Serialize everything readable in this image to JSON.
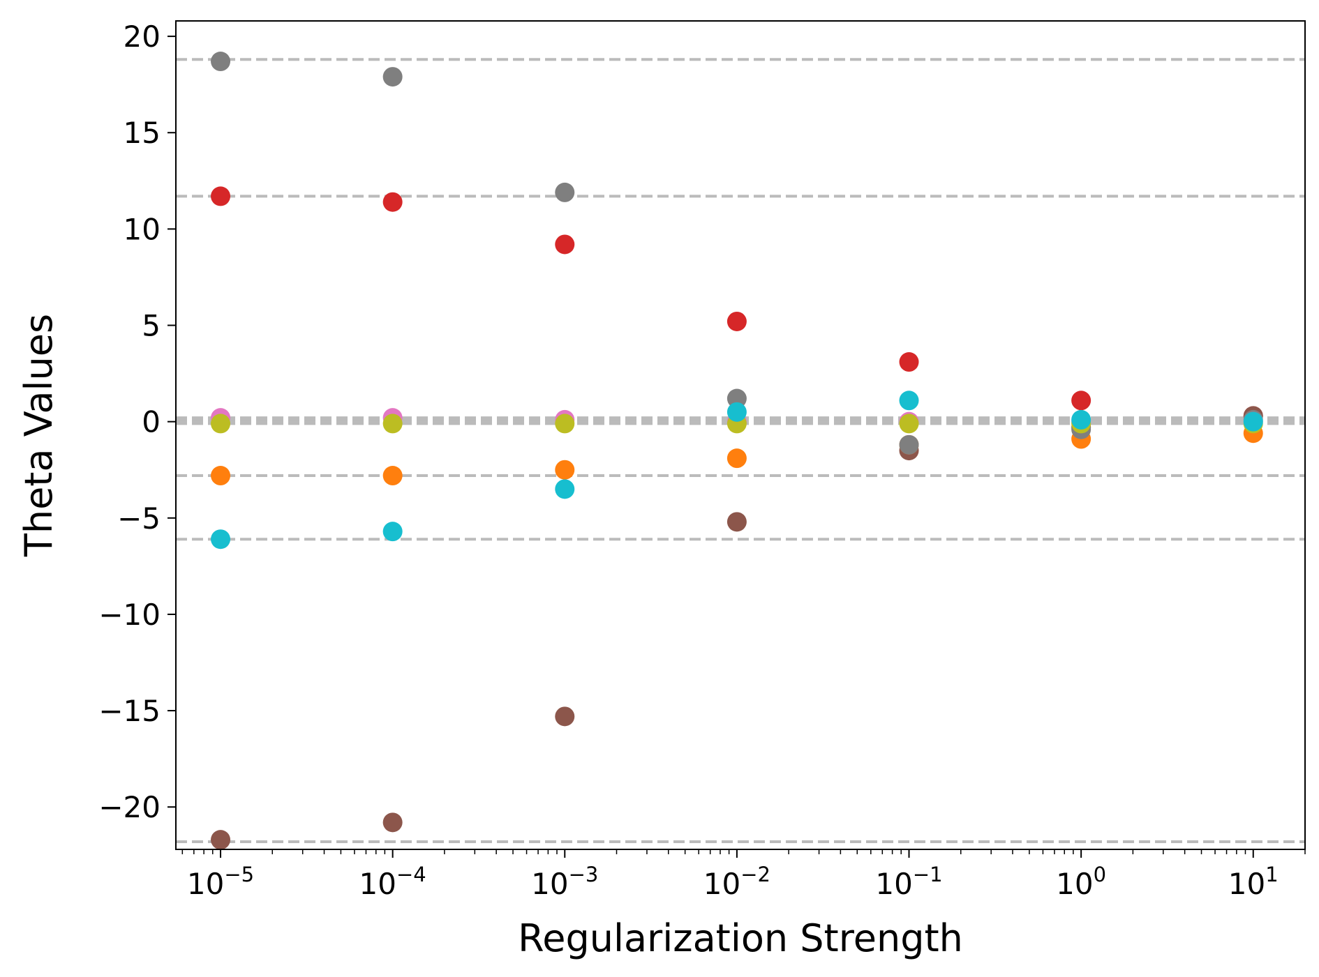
{
  "chart_data": {
    "type": "scatter",
    "title": "",
    "xlabel": "Regularization Strength",
    "ylabel": "Theta Values",
    "x_scale": "log",
    "xlim": [
      5.5e-06,
      20
    ],
    "ylim": [
      -22.2,
      20.8
    ],
    "grid": false,
    "x_ticks": [
      {
        "value": 1e-05,
        "base": "10",
        "exp": "−5"
      },
      {
        "value": 0.0001,
        "base": "10",
        "exp": "−4"
      },
      {
        "value": 0.001,
        "base": "10",
        "exp": "−3"
      },
      {
        "value": 0.01,
        "base": "10",
        "exp": "−2"
      },
      {
        "value": 0.1,
        "base": "10",
        "exp": "−1"
      },
      {
        "value": 1,
        "base": "10",
        "exp": "0"
      },
      {
        "value": 10,
        "base": "10",
        "exp": "1"
      }
    ],
    "y_ticks": [
      {
        "value": 20,
        "label": "20"
      },
      {
        "value": 15,
        "label": "15"
      },
      {
        "value": 10,
        "label": "10"
      },
      {
        "value": 5,
        "label": "5"
      },
      {
        "value": 0,
        "label": "0"
      },
      {
        "value": -5,
        "label": "−5"
      },
      {
        "value": -10,
        "label": "−10"
      },
      {
        "value": -15,
        "label": "−15"
      },
      {
        "value": -20,
        "label": "−20"
      }
    ],
    "x": [
      1e-05,
      0.0001,
      0.001,
      0.01,
      0.1,
      1,
      10
    ],
    "reference_lines": {
      "color": "#bbbbbb",
      "style": "dashed",
      "values": [
        18.8,
        11.7,
        0.2,
        0.1,
        0.0,
        -0.1,
        -2.8,
        -6.1,
        -21.8
      ]
    },
    "series": [
      {
        "color": "#d62728",
        "values": [
          11.7,
          11.4,
          9.2,
          5.2,
          3.1,
          1.1,
          0.3
        ]
      },
      {
        "color": "#8c564b",
        "values": [
          -21.7,
          -20.8,
          -15.3,
          -5.2,
          -1.5,
          -0.3,
          0.3
        ]
      },
      {
        "color": "#ff7f0e",
        "values": [
          -2.8,
          -2.8,
          -2.5,
          -1.9,
          -1.2,
          -0.9,
          -0.6
        ]
      },
      {
        "color": "#7f7f7f",
        "values": [
          18.7,
          17.9,
          11.9,
          1.2,
          -1.2,
          -0.4,
          0.1
        ]
      },
      {
        "color": "#e377c2",
        "values": [
          0.2,
          0.2,
          0.1,
          0.0,
          0.0,
          0.0,
          0.0
        ]
      },
      {
        "color": "#bcbd22",
        "values": [
          -0.1,
          -0.1,
          -0.1,
          -0.1,
          -0.1,
          -0.1,
          -0.1
        ]
      },
      {
        "color": "#17becf",
        "values": [
          -6.1,
          -5.7,
          -3.5,
          0.5,
          1.1,
          0.1,
          0.0
        ]
      }
    ]
  }
}
